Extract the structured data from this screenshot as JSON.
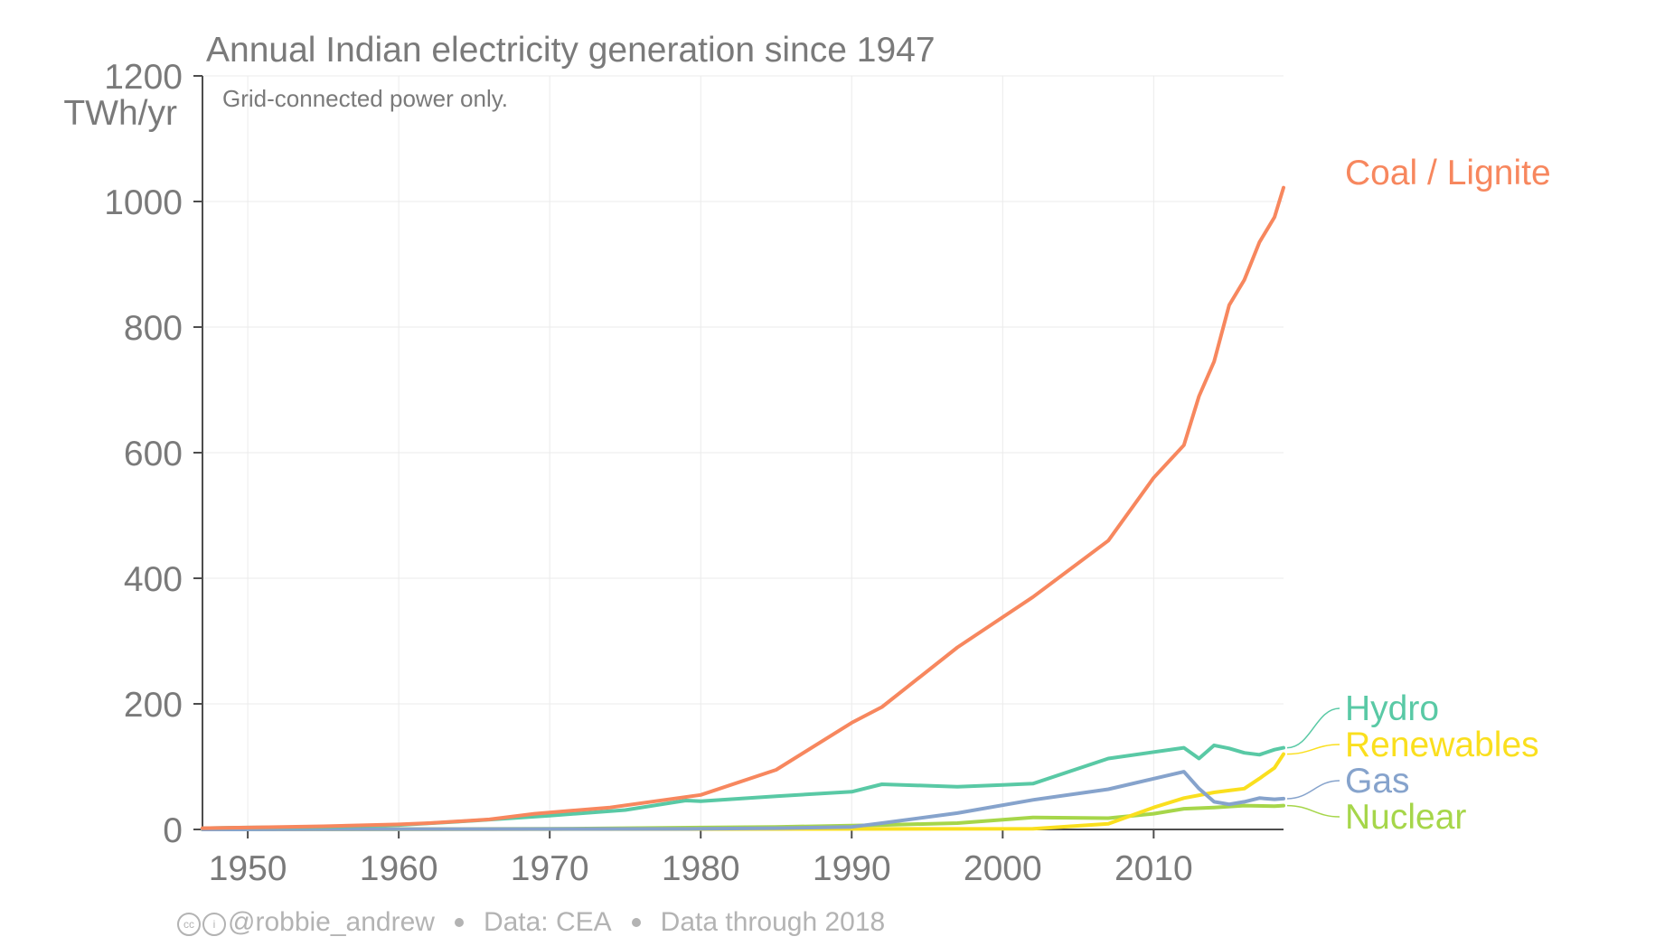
{
  "colors": {
    "coal": "#f7875e",
    "hydro": "#59c9a5",
    "renewables": "#fadf1e",
    "gas": "#86a3cc",
    "nuclear": "#a6d64a",
    "text": "#7a7a7a",
    "grid": "#ebebeb",
    "axis": "#4d4d4d"
  },
  "chart_data": {
    "type": "line",
    "title": "Annual Indian electricity generation since 1947",
    "subtitle": "Grid-connected power only.",
    "ylabel": "TWh/yr",
    "xlim": [
      1947,
      2018
    ],
    "ylim": [
      0,
      1200
    ],
    "x_ticks": [
      1950,
      1960,
      1970,
      1980,
      1990,
      2000,
      2010
    ],
    "x_tick_labels": [
      "1950",
      "1960",
      "1970",
      "1980",
      "1990",
      "2000",
      "2010"
    ],
    "y_ticks": [
      0,
      200,
      400,
      600,
      800,
      1000,
      1200
    ],
    "y_tick_labels": [
      "0",
      "200",
      "400",
      "600",
      "800",
      "1000",
      "1200"
    ],
    "grid": true,
    "legend": "direct labels at right end of lines",
    "series": [
      {
        "name": "Coal / Lignite",
        "color_key": "coal",
        "points": [
          [
            1947,
            2
          ],
          [
            1950,
            3
          ],
          [
            1955,
            5
          ],
          [
            1960,
            8
          ],
          [
            1962,
            10
          ],
          [
            1966,
            16
          ],
          [
            1969,
            25
          ],
          [
            1974,
            35
          ],
          [
            1980,
            55
          ],
          [
            1985,
            95
          ],
          [
            1990,
            170
          ],
          [
            1992,
            195
          ],
          [
            1997,
            290
          ],
          [
            2002,
            370
          ],
          [
            2007,
            460
          ],
          [
            2010,
            560
          ],
          [
            2012,
            612
          ],
          [
            2013,
            690
          ],
          [
            2014,
            745
          ],
          [
            2015,
            835
          ],
          [
            2016,
            875
          ],
          [
            2017,
            935
          ],
          [
            2018,
            975
          ],
          [
            2018.6,
            1022
          ]
        ]
      },
      {
        "name": "Hydro",
        "color_key": "hydro",
        "points": [
          [
            1947,
            2
          ],
          [
            1950,
            3
          ],
          [
            1955,
            4
          ],
          [
            1960,
            7
          ],
          [
            1965,
            14
          ],
          [
            1970,
            22
          ],
          [
            1975,
            31
          ],
          [
            1979,
            46
          ],
          [
            1980,
            45
          ],
          [
            1985,
            53
          ],
          [
            1990,
            60
          ],
          [
            1992,
            72
          ],
          [
            1997,
            68
          ],
          [
            2000,
            71
          ],
          [
            2002,
            73
          ],
          [
            2007,
            113
          ],
          [
            2012,
            130
          ],
          [
            2013,
            113
          ],
          [
            2014,
            134
          ],
          [
            2015,
            129
          ],
          [
            2016,
            122
          ],
          [
            2017,
            119
          ],
          [
            2018,
            127
          ],
          [
            2018.6,
            130
          ]
        ]
      },
      {
        "name": "Renewables",
        "color_key": "renewables",
        "points": [
          [
            1947,
            0
          ],
          [
            2002,
            1
          ],
          [
            2007,
            9
          ],
          [
            2010,
            35
          ],
          [
            2012,
            50
          ],
          [
            2014,
            59
          ],
          [
            2015,
            62
          ],
          [
            2016,
            65
          ],
          [
            2017,
            81
          ],
          [
            2018,
            98
          ],
          [
            2018.6,
            120
          ]
        ]
      },
      {
        "name": "Gas",
        "color_key": "gas",
        "points": [
          [
            1947,
            0
          ],
          [
            1980,
            1
          ],
          [
            1985,
            2
          ],
          [
            1990,
            4
          ],
          [
            1992,
            10
          ],
          [
            1997,
            26
          ],
          [
            2002,
            47
          ],
          [
            2007,
            64
          ],
          [
            2012,
            92
          ],
          [
            2013,
            65
          ],
          [
            2014,
            44
          ],
          [
            2015,
            40
          ],
          [
            2016,
            44
          ],
          [
            2017,
            50
          ],
          [
            2018,
            48
          ],
          [
            2018.6,
            49
          ]
        ]
      },
      {
        "name": "Nuclear",
        "color_key": "nuclear",
        "points": [
          [
            1947,
            0
          ],
          [
            1970,
            1
          ],
          [
            1975,
            2
          ],
          [
            1980,
            3
          ],
          [
            1985,
            4
          ],
          [
            1990,
            6
          ],
          [
            1992,
            7
          ],
          [
            1997,
            10
          ],
          [
            2002,
            19
          ],
          [
            2007,
            18
          ],
          [
            2010,
            25
          ],
          [
            2012,
            33
          ],
          [
            2014,
            35
          ],
          [
            2016,
            38
          ],
          [
            2018,
            37
          ],
          [
            2018.6,
            38
          ]
        ]
      }
    ]
  },
  "labels": {
    "coal": "Coal / Lignite",
    "hydro": "Hydro",
    "renewables": "Renewables",
    "gas": "Gas",
    "nuclear": "Nuclear"
  },
  "footer": {
    "handle": "@robbie_andrew",
    "source": "Data: CEA",
    "through": "Data through 2018",
    "license_icons": [
      "creative-commons-icon",
      "attribution-icon"
    ]
  }
}
